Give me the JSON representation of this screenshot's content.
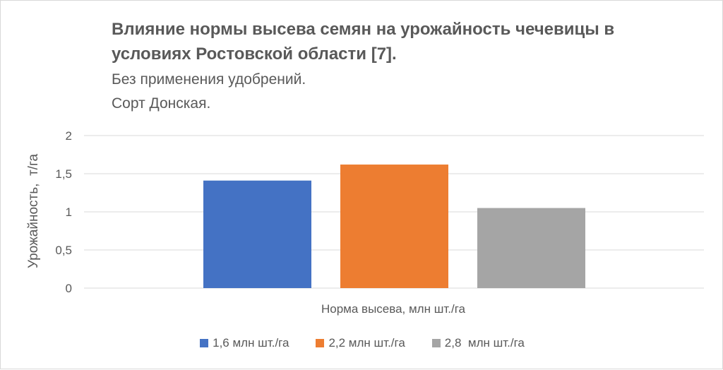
{
  "chart_data": {
    "type": "bar",
    "title": [
      "Влияние нормы высева семян на урожайность чечевицы в",
      "условиях Ростовской области [7]."
    ],
    "subtitle": [
      "Без применения удобрений.",
      "Сорт Донская."
    ],
    "xlabel": "Норма высева, млн шт./га",
    "ylabel": "Урожайность,  т/га",
    "ylim": [
      0,
      2
    ],
    "yticks": [
      "0",
      "0,5",
      "1",
      "1,5",
      "2"
    ],
    "grid": true,
    "legend_position": "bottom",
    "series": [
      {
        "name": "1,6 млн шт./га",
        "value": 1.41,
        "color": "#4472C4"
      },
      {
        "name": "2,2 млн шт./га",
        "value": 1.62,
        "color": "#ED7D31"
      },
      {
        "name": "2,8  млн шт./га",
        "value": 1.05,
        "color": "#A5A5A5"
      }
    ]
  }
}
